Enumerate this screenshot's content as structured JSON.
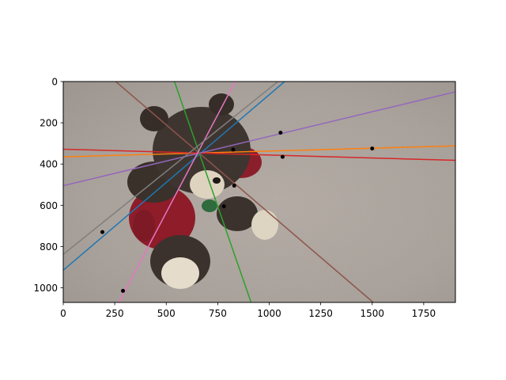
{
  "chart_data": {
    "type": "scatter",
    "title": "",
    "xlabel": "",
    "ylabel": "",
    "xlim": [
      0,
      1904
    ],
    "ylim": [
      1071,
      0
    ],
    "y_axis_inverted": true,
    "grid": false,
    "background": "photo of a teddy bear on carpet",
    "x_ticks": [
      0,
      250,
      500,
      750,
      1000,
      1250,
      1500,
      1750
    ],
    "y_ticks": [
      0,
      200,
      400,
      600,
      800,
      1000
    ],
    "x_tick_labels": [
      "0",
      "250",
      "500",
      "750",
      "1000",
      "1250",
      "1500",
      "1750"
    ],
    "y_tick_labels": [
      "0",
      "200",
      "400",
      "600",
      "800",
      "1000"
    ],
    "points": [
      {
        "x": 190,
        "y": 730
      },
      {
        "x": 290,
        "y": 1015
      },
      {
        "x": 825,
        "y": 330
      },
      {
        "x": 830,
        "y": 505
      },
      {
        "x": 780,
        "y": 605
      },
      {
        "x": 1055,
        "y": 248
      },
      {
        "x": 1065,
        "y": 365
      },
      {
        "x": 1500,
        "y": 325
      }
    ],
    "point_color": "#000000",
    "lines": [
      {
        "color": "#1f77b4",
        "x1": 0,
        "y1": 915,
        "x2": 1075,
        "y2": 0
      },
      {
        "color": "#ff7f0e",
        "x1": 0,
        "y1": 365,
        "x2": 1904,
        "y2": 312
      },
      {
        "color": "#2ca02c",
        "x1": 540,
        "y1": 0,
        "x2": 912,
        "y2": 1071
      },
      {
        "color": "#d62728",
        "x1": 0,
        "y1": 328,
        "x2": 1904,
        "y2": 382
      },
      {
        "color": "#9467bd",
        "x1": 0,
        "y1": 505,
        "x2": 1904,
        "y2": 50
      },
      {
        "color": "#8c564b",
        "x1": 255,
        "y1": 0,
        "x2": 1505,
        "y2": 1071
      },
      {
        "color": "#e377c2",
        "x1": 270,
        "y1": 1071,
        "x2": 835,
        "y2": 0
      },
      {
        "color": "#7f7f7f",
        "x1": 0,
        "y1": 838,
        "x2": 1042,
        "y2": 0
      }
    ]
  }
}
